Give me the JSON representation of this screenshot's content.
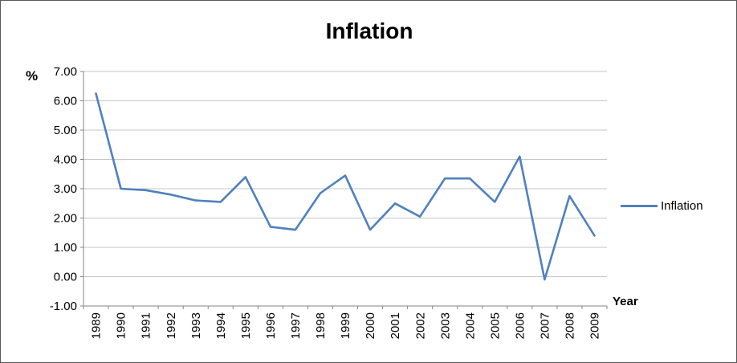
{
  "chart_data": {
    "type": "line",
    "title": "Inflation",
    "xlabel": "Year",
    "ylabel": "%",
    "categories": [
      "1989",
      "1990",
      "1991",
      "1992",
      "1993",
      "1994",
      "1995",
      "1996",
      "1997",
      "1998",
      "1999",
      "2000",
      "2001",
      "2002",
      "2003",
      "2004",
      "2005",
      "2006",
      "2007",
      "2008",
      "2009"
    ],
    "series": [
      {
        "name": "Inflation",
        "color": "#4f81bd",
        "values": [
          6.25,
          3.0,
          2.95,
          2.8,
          2.6,
          2.55,
          3.4,
          1.7,
          1.6,
          2.85,
          3.45,
          1.6,
          2.5,
          2.05,
          3.35,
          3.35,
          2.55,
          4.1,
          -0.1,
          2.75,
          1.4
        ]
      }
    ],
    "ylim": [
      -1,
      7
    ],
    "ytick_values": [
      7,
      6,
      5,
      4,
      3,
      2,
      1,
      0,
      -1
    ],
    "ytick_labels": [
      "7.00",
      "6.00",
      "5.00",
      "4.00",
      "3.00",
      "2.00",
      "1.00",
      "0.00",
      "-1.00"
    ],
    "grid": true,
    "legend_position": "right",
    "x_labels_rotated": true,
    "colors": {
      "line": "#4f81bd",
      "gridline": "#c6c6c6",
      "axis": "#868686",
      "text": "#000000",
      "border": "#595959"
    }
  }
}
